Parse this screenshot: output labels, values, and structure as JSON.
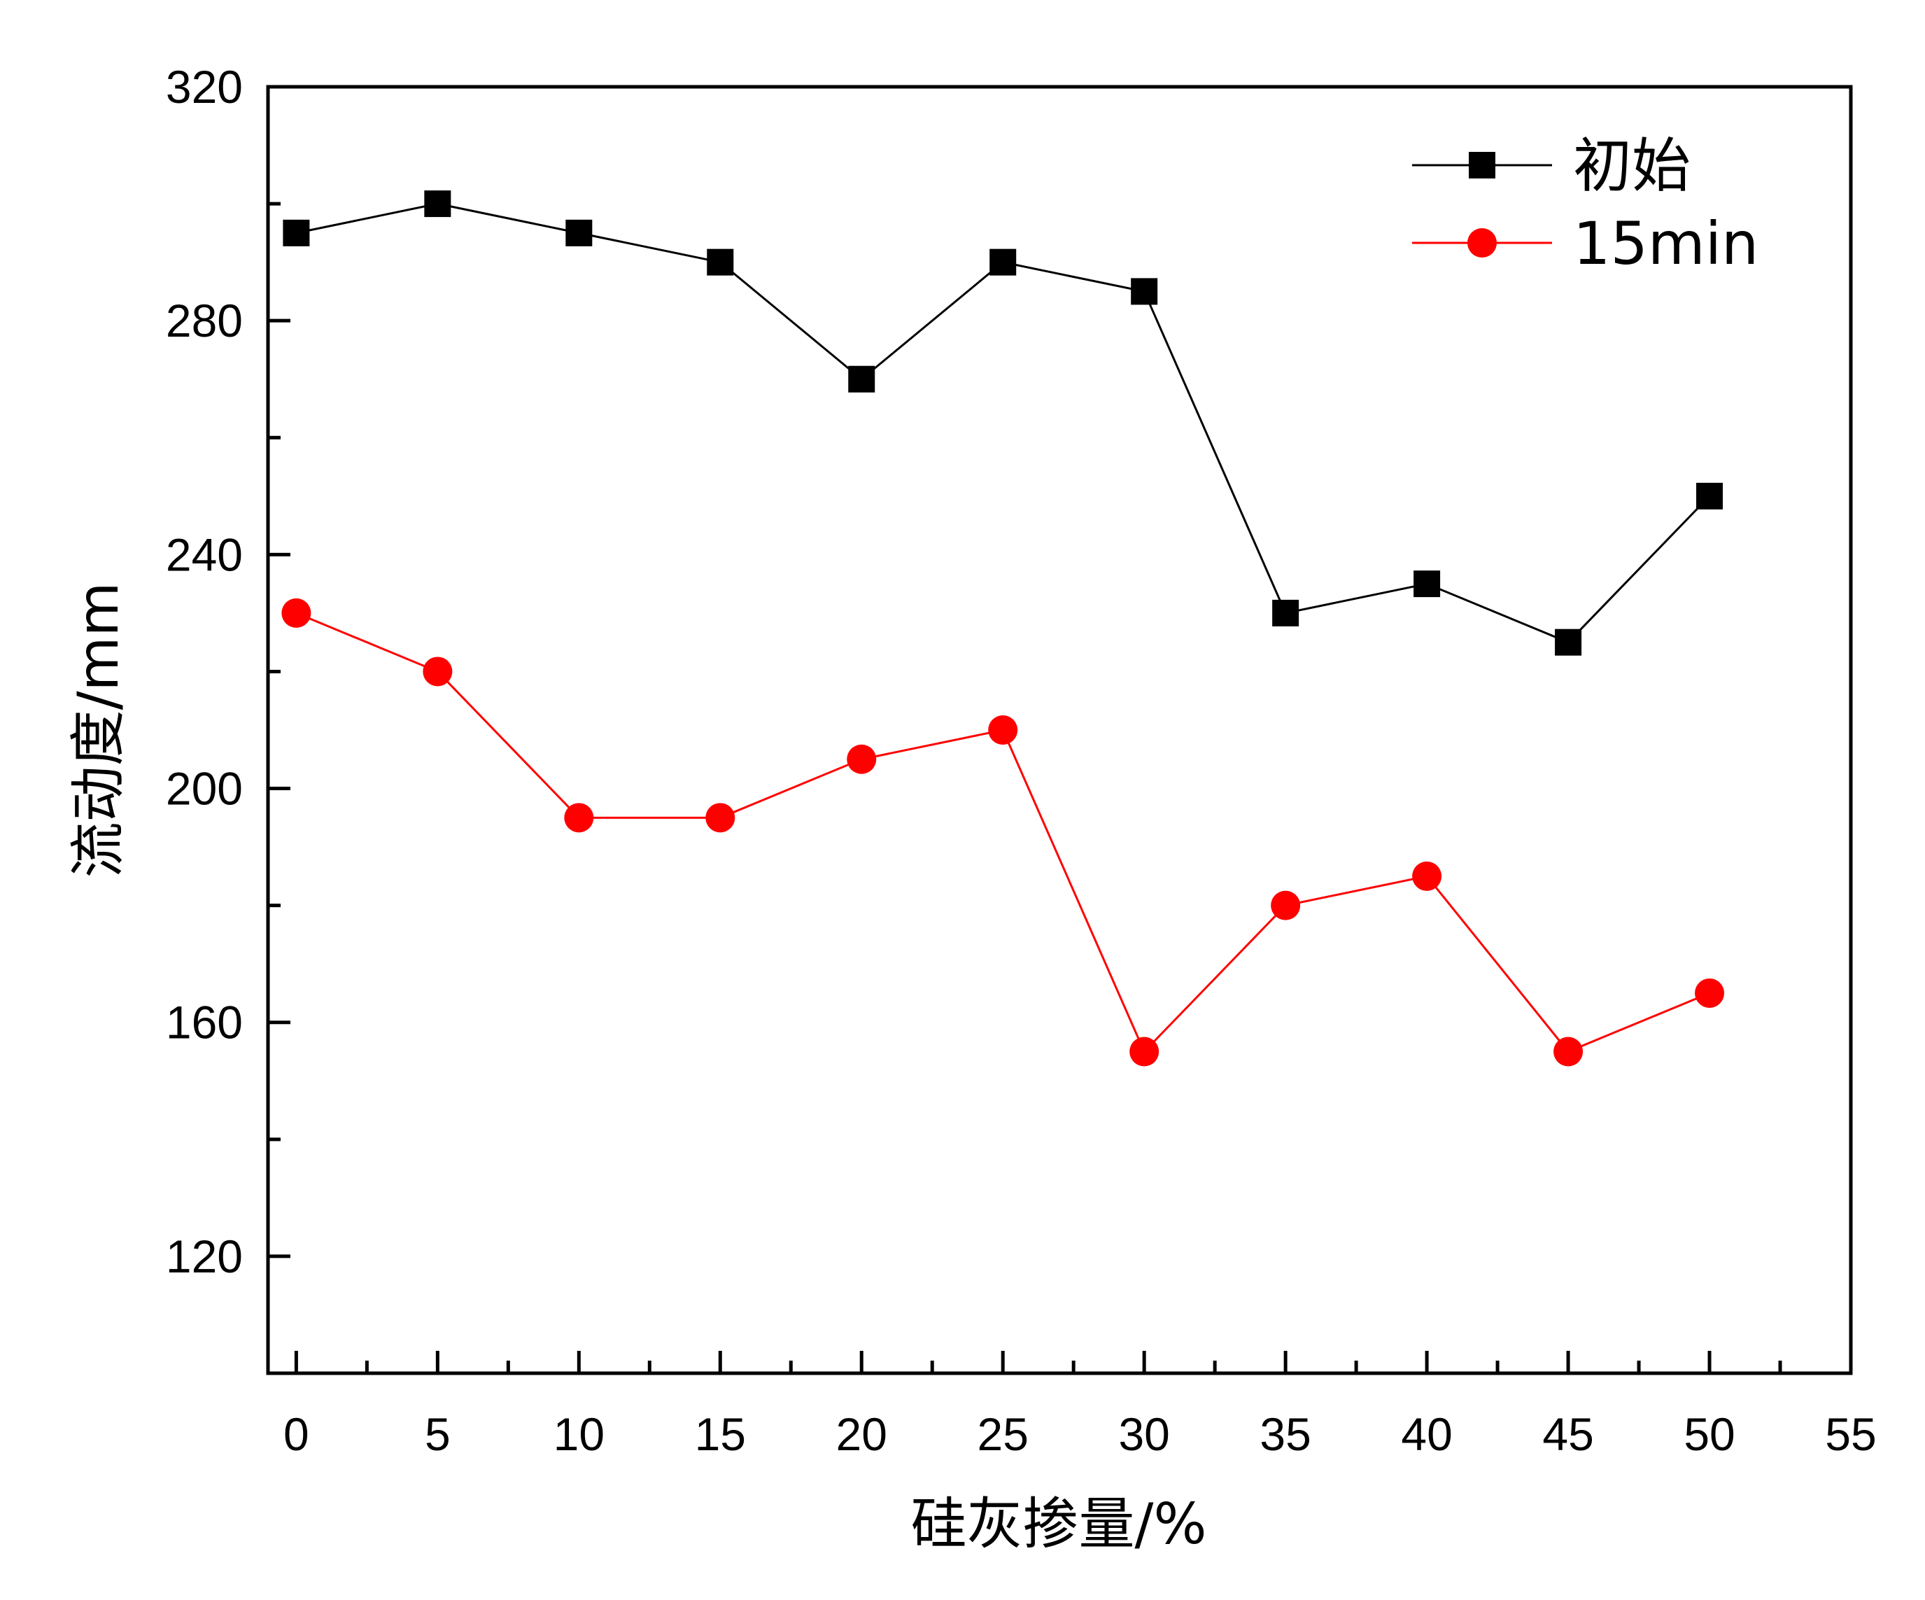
{
  "chart_data": {
    "type": "line",
    "xlabel": "硅灰掺量/%",
    "ylabel": "流动度/mm",
    "xlim": [
      -1,
      55
    ],
    "ylim": [
      100,
      320
    ],
    "xticks": [
      0,
      5,
      10,
      15,
      20,
      25,
      30,
      35,
      40,
      45,
      50,
      55
    ],
    "xtick_labels": [
      "0",
      "5",
      "10",
      "15",
      "20",
      "25",
      "30",
      "35",
      "40",
      "45",
      "50",
      "55"
    ],
    "yticks": [
      120,
      160,
      200,
      240,
      280,
      320
    ],
    "ytick_labels": [
      "120",
      "160",
      "200",
      "240",
      "280",
      "320"
    ],
    "grid": false,
    "legend_position": "top-right",
    "x": [
      0,
      5,
      10,
      15,
      20,
      25,
      30,
      35,
      40,
      45,
      50
    ],
    "series": [
      {
        "name": "初始",
        "marker": "square",
        "color": "#000000",
        "values": [
          295,
          300,
          295,
          290,
          270,
          290,
          285,
          230,
          235,
          225,
          250
        ]
      },
      {
        "name": "15min",
        "marker": "circle",
        "color": "#ff0000",
        "values": [
          230,
          220,
          195,
          195,
          205,
          210,
          155,
          180,
          185,
          155,
          165
        ]
      }
    ]
  }
}
